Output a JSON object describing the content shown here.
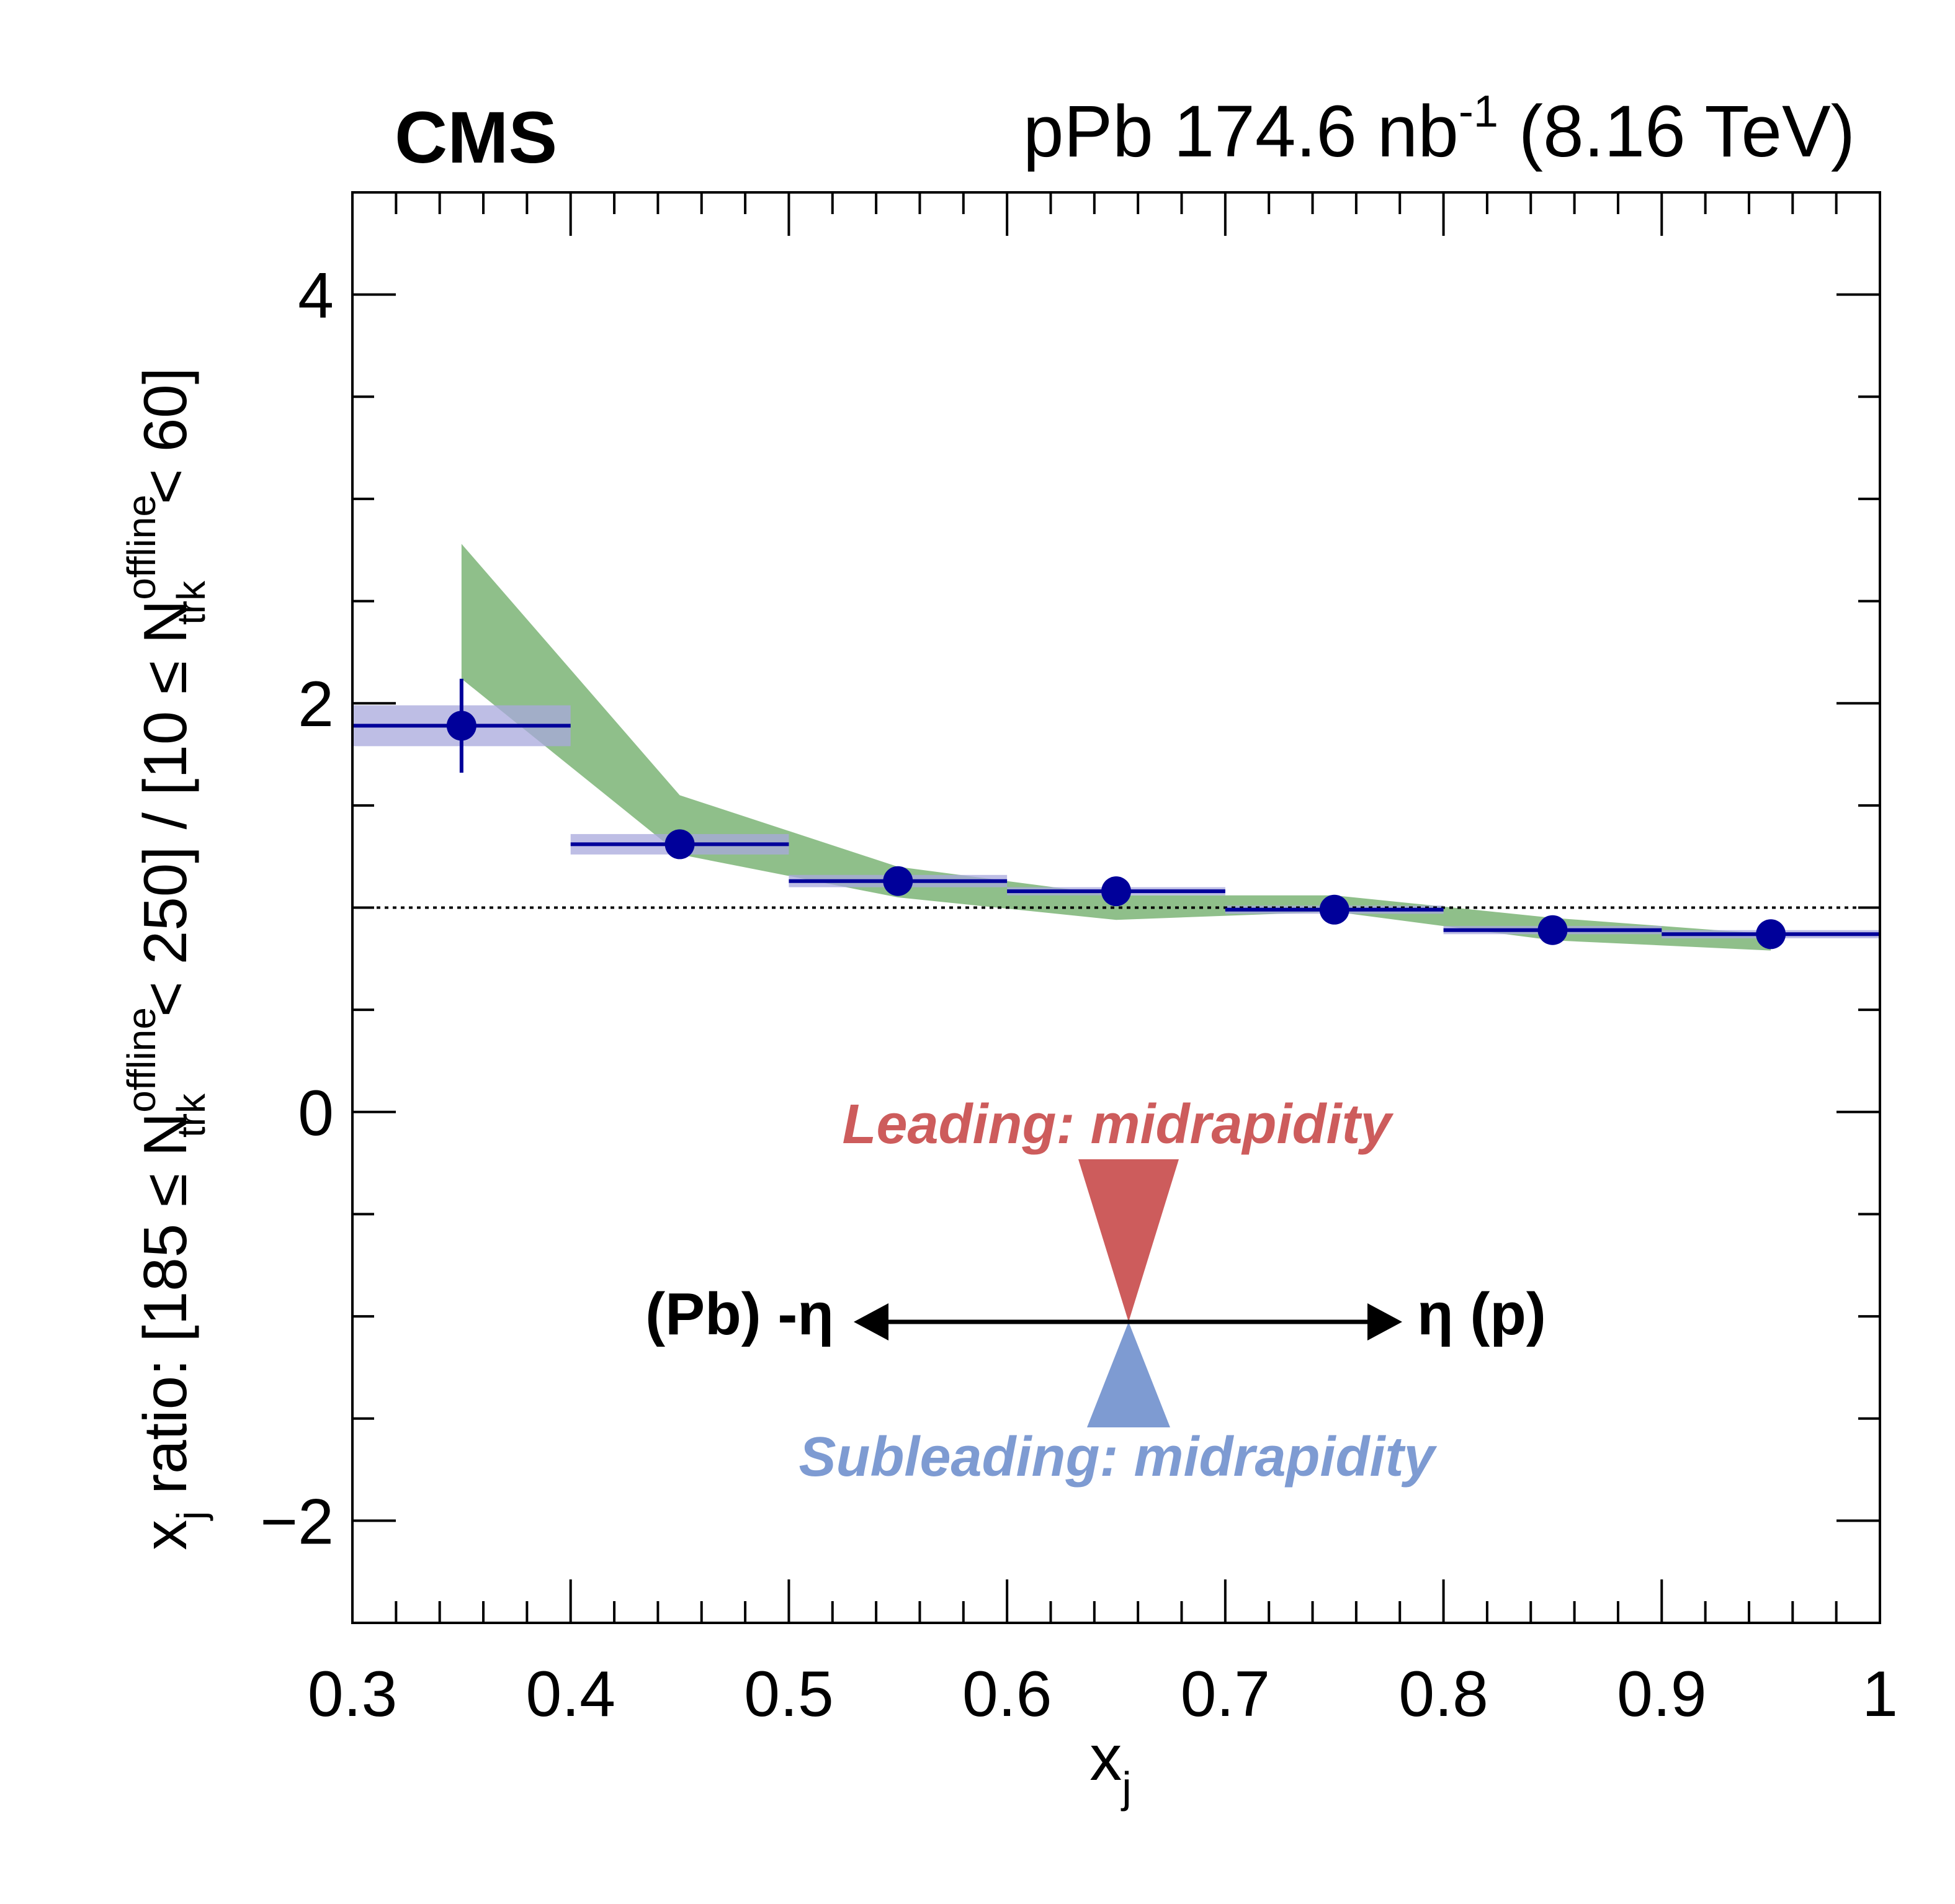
{
  "header": {
    "experiment": "CMS",
    "lumi_prefix": "pPb 174.6 nb",
    "lumi_exponent": "-1",
    "energy": "(8.16 TeV)"
  },
  "axes": {
    "xlabel": "x",
    "xlabel_sub": "j",
    "ylabel": {
      "part1": "x",
      "part1_sub": "j",
      "part2": " ratio: [185 ≤ N",
      "n1_sup": "offline",
      "n1_sub": "trk",
      "part3": " < 250] / [10 ≤ N",
      "n2_sup": "offline",
      "n2_sub": "trk",
      "part4": " < 60]"
    },
    "x_ticks": [
      "0.3",
      "0.4",
      "0.5",
      "0.6",
      "0.7",
      "0.8",
      "0.9",
      "1"
    ],
    "y_ticks": [
      "−2",
      "0",
      "2",
      "4"
    ]
  },
  "colors": {
    "data": "#00009a",
    "data_syst_band": "#a8a8dc",
    "comparison_band": "#8fbf8a",
    "reference_line": "#000000",
    "leading": "#cd5c5c",
    "subleading": "#7e9bd2",
    "arrow": "#000000"
  },
  "chart_data": {
    "type": "scatter",
    "xlim": [
      0.3,
      1.0
    ],
    "ylim": [
      -2.5,
      4.5
    ],
    "reference_line_y": 1.0,
    "grid": false,
    "series": [
      {
        "kind": "data",
        "x": [
          0.35,
          0.45,
          0.55,
          0.65,
          0.75,
          0.85,
          0.95
        ],
        "x_bin_edges": [
          [
            0.3,
            0.4
          ],
          [
            0.4,
            0.5
          ],
          [
            0.5,
            0.6
          ],
          [
            0.6,
            0.7
          ],
          [
            0.7,
            0.8
          ],
          [
            0.8,
            0.9
          ],
          [
            0.9,
            1.0
          ]
        ],
        "y": [
          1.89,
          1.31,
          1.13,
          1.08,
          0.99,
          0.89,
          0.87
        ],
        "stat_err": [
          0.23,
          0.03,
          0.02,
          0.02,
          0.02,
          0.02,
          0.02
        ],
        "syst_err": [
          0.1,
          0.05,
          0.03,
          0.02,
          0.02,
          0.02,
          0.02
        ]
      },
      {
        "kind": "band",
        "x": [
          0.35,
          0.45,
          0.55,
          0.65,
          0.75,
          0.85,
          0.95
        ],
        "upper": [
          2.78,
          1.55,
          1.2,
          1.06,
          1.06,
          0.95,
          0.87
        ],
        "lower": [
          2.12,
          1.26,
          1.05,
          0.94,
          0.98,
          0.84,
          0.79
        ]
      }
    ],
    "annotations": {
      "leading": "Leading: midrapidity",
      "subleading": "Subleading: midrapidity",
      "left_direction": "(Pb) -η",
      "right_direction": "η (p)"
    }
  }
}
